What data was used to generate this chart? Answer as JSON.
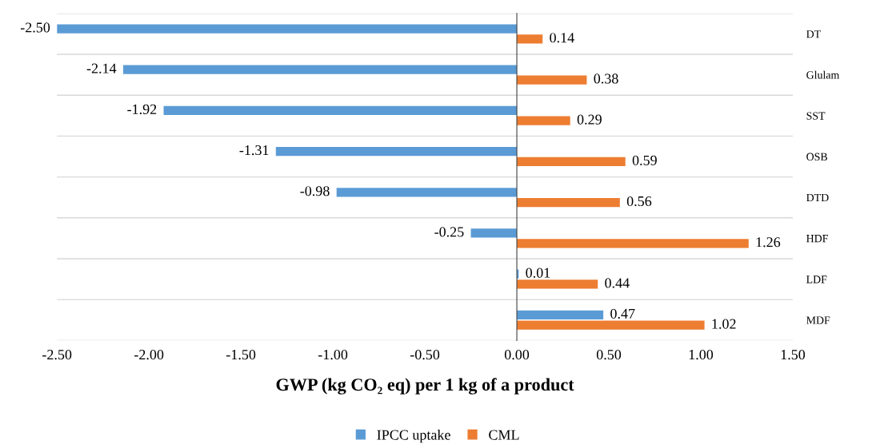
{
  "chart_data": {
    "type": "bar",
    "orientation": "horizontal",
    "xlabel": "GWP (kg CO₂ eq) per 1 kg of a product",
    "categories": [
      "DT",
      "Glulam",
      "SST",
      "OSB",
      "DTD",
      "HDF",
      "LDF",
      "MDF"
    ],
    "series": [
      {
        "name": "IPCC uptake",
        "color": "#5b9bd5",
        "values": [
          -2.5,
          -2.14,
          -1.92,
          -1.31,
          -0.98,
          -0.25,
          0.01,
          0.47
        ],
        "value_labels": [
          "-2.50",
          "-2.14",
          "-1.92",
          "-1.31",
          "-0.98",
          "-0.25",
          "0.01",
          "0.47"
        ]
      },
      {
        "name": "CML",
        "color": "#ed7d31",
        "values": [
          0.14,
          0.38,
          0.29,
          0.59,
          0.56,
          1.26,
          0.44,
          1.02
        ],
        "value_labels": [
          "0.14",
          "0.38",
          "0.29",
          "0.59",
          "0.56",
          "1.26",
          "0.44",
          "1.02"
        ]
      }
    ],
    "xlim": [
      -2.5,
      1.5
    ],
    "xticks": [
      {
        "value": -2.5,
        "label": "-2.50"
      },
      {
        "value": -2.0,
        "label": "-2.00"
      },
      {
        "value": -1.5,
        "label": "-1.50"
      },
      {
        "value": -1.0,
        "label": "-1.00"
      },
      {
        "value": -0.5,
        "label": "-0.50"
      },
      {
        "value": 0.0,
        "label": "0.00"
      },
      {
        "value": 0.5,
        "label": "0.50"
      },
      {
        "value": 1.0,
        "label": "1.00"
      },
      {
        "value": 1.5,
        "label": "1.50"
      }
    ],
    "grid": "y",
    "legend": "bottom"
  }
}
